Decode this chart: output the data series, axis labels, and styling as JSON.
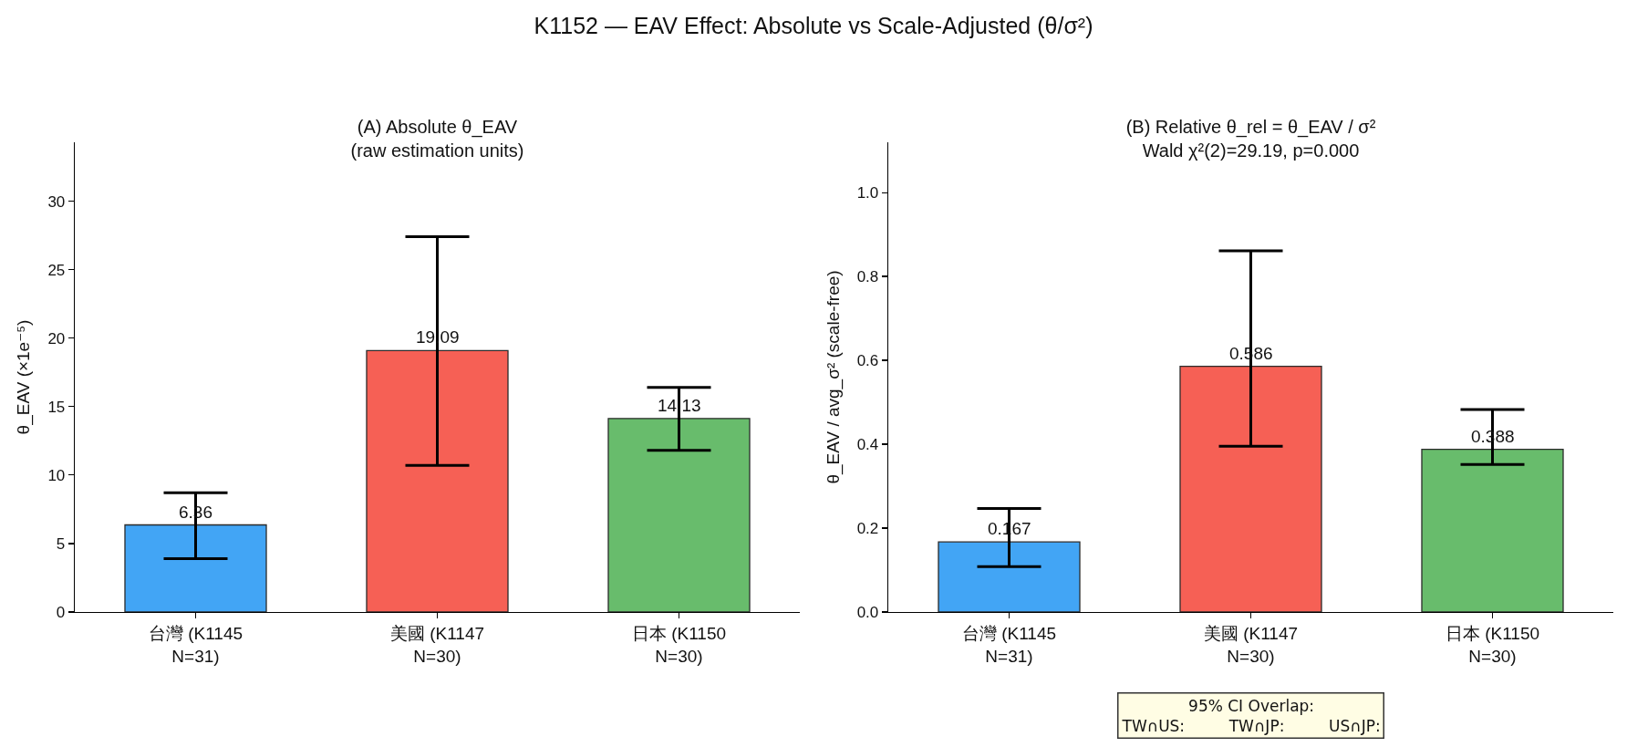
{
  "chart_data": [
    {
      "type": "bar",
      "title": "K1152 — EAV Effect: Absolute vs Scale-Adjusted (θ/σ²)",
      "subtitle": "(A) Absolute θ_EAV\n(raw estimation units)",
      "ylabel": "θ_EAV (×1e⁻⁵)",
      "categories": [
        "台灣 (K1145\nN=31)",
        "美國 (K1147\nN=30)",
        "日本 (K1150\nN=30)"
      ],
      "values": [
        6.36,
        19.09,
        14.13
      ],
      "colors": [
        "#42a5f5",
        "#f66055",
        "#68bc6c"
      ],
      "errors": [
        [
          3.9,
          8.7
        ],
        [
          10.7,
          27.4
        ],
        [
          11.8,
          16.4
        ]
      ],
      "data_labels": true,
      "ylim": [
        0,
        34.3
      ],
      "yticks": [
        0,
        5,
        10,
        15,
        20,
        25,
        30
      ]
    },
    {
      "type": "bar",
      "subtitle": "(B) Relative θ_rel = θ_EAV / σ²\nWald χ²(2)=29.19, p=0.000",
      "ylabel": "θ_EAV / avg_σ² (scale-free)",
      "categories": [
        "台灣 (K1145\nN=31)",
        "美國 (K1147\nN=30)",
        "日本 (K1150\nN=30)"
      ],
      "values": [
        0.167,
        0.586,
        0.388
      ],
      "colors": [
        "#42a5f5",
        "#f66055",
        "#68bc6c"
      ],
      "errors": [
        [
          0.108,
          0.247
        ],
        [
          0.395,
          0.861
        ],
        [
          0.352,
          0.483
        ]
      ],
      "data_labels": true,
      "ylim": [
        0,
        1.12
      ],
      "yticks": [
        {
          "value": 0,
          "label": "0.0"
        },
        0.2,
        0.4,
        0.6,
        0.8,
        {
          "value": 1,
          "label": "1.0"
        }
      ],
      "annotations": [
        "95% CI Overlap:\nTW∩US:         TW∩JP:         US∩JP:"
      ]
    }
  ]
}
